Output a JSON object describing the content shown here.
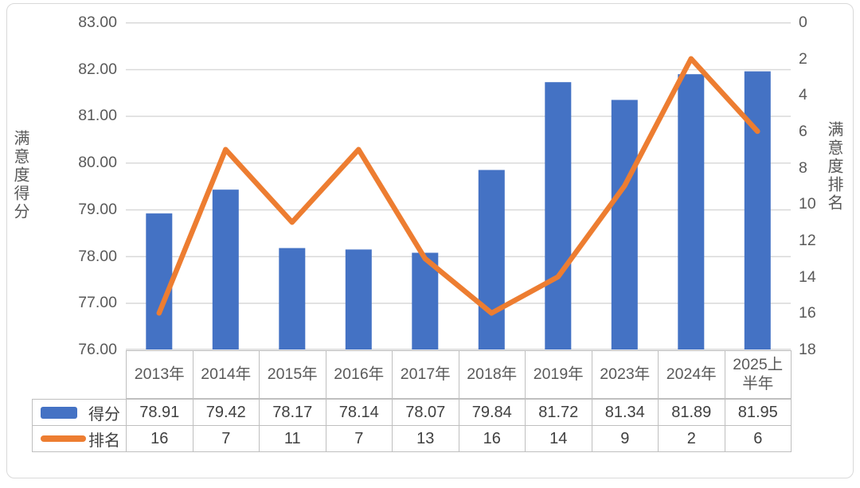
{
  "chart_data": {
    "type": "combo",
    "categories": [
      "2013年",
      "2014年",
      "2015年",
      "2016年",
      "2017年",
      "2018年",
      "2019年",
      "2023年",
      "2024年",
      "2025上半年"
    ],
    "series": [
      {
        "name": "得分",
        "type": "bar",
        "axis": "left",
        "color": "#4472C4",
        "values": [
          78.91,
          79.42,
          78.17,
          78.14,
          78.07,
          79.84,
          81.72,
          81.34,
          81.89,
          81.95
        ],
        "display": [
          "78.91",
          "79.42",
          "78.17",
          "78.14",
          "78.07",
          "79.84",
          "81.72",
          "81.34",
          "81.89",
          "81.95"
        ]
      },
      {
        "name": "排名",
        "type": "line",
        "axis": "right",
        "color": "#ED7D31",
        "values": [
          16,
          7,
          11,
          7,
          13,
          16,
          14,
          9,
          2,
          6
        ],
        "display": [
          "16",
          "7",
          "11",
          "7",
          "13",
          "16",
          "14",
          "9",
          "2",
          "6"
        ]
      }
    ],
    "left_axis": {
      "title": "满意度得分",
      "min": 76,
      "max": 83,
      "step": 1,
      "ticks": [
        "83.00",
        "82.00",
        "81.00",
        "80.00",
        "79.00",
        "78.00",
        "77.00",
        "76.00"
      ]
    },
    "right_axis": {
      "title": "满意度排名",
      "min": 0,
      "max": 18,
      "step": 2,
      "reversed": true,
      "ticks": [
        "0",
        "2",
        "4",
        "6",
        "8",
        "10",
        "12",
        "14",
        "16",
        "18"
      ]
    },
    "grid": "horizontal",
    "legend_position": "data-table-left-column"
  },
  "style": {
    "bar_color": "#4472C4",
    "line_color": "#ED7D31",
    "grid_color": "#D9D9D9",
    "axis_text_color": "#595959",
    "table_text_color": "#404040",
    "table_border_color": "#BFBFBF",
    "frame_border_color": "#D9D9D9"
  }
}
